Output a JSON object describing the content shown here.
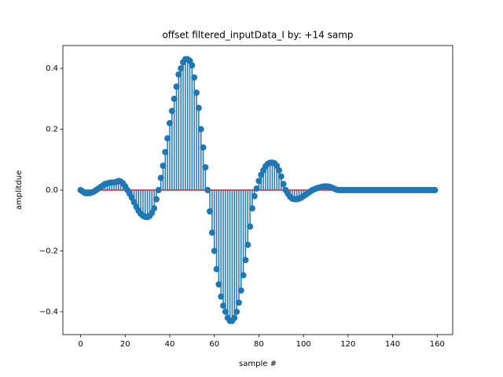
{
  "chart_data": {
    "type": "stem",
    "title": "offset filtered_inputData_I by: +14 samp",
    "xlabel": "sample #",
    "ylabel": "amplitdue",
    "x": [
      0,
      1,
      2,
      3,
      4,
      5,
      6,
      7,
      8,
      9,
      10,
      11,
      12,
      13,
      14,
      15,
      16,
      17,
      18,
      19,
      20,
      21,
      22,
      23,
      24,
      25,
      26,
      27,
      28,
      29,
      30,
      31,
      32,
      33,
      34,
      35,
      36,
      37,
      38,
      39,
      40,
      41,
      42,
      43,
      44,
      45,
      46,
      47,
      48,
      49,
      50,
      51,
      52,
      53,
      54,
      55,
      56,
      57,
      58,
      59,
      60,
      61,
      62,
      63,
      64,
      65,
      66,
      67,
      68,
      69,
      70,
      71,
      72,
      73,
      74,
      75,
      76,
      77,
      78,
      79,
      80,
      81,
      82,
      83,
      84,
      85,
      86,
      87,
      88,
      89,
      90,
      91,
      92,
      93,
      94,
      95,
      96,
      97,
      98,
      99,
      100,
      101,
      102,
      103,
      104,
      105,
      106,
      107,
      108,
      109,
      110,
      111,
      112,
      113,
      114,
      115,
      116,
      117,
      118,
      119,
      120,
      121,
      122,
      123,
      124,
      125,
      126,
      127,
      128,
      129,
      130,
      131,
      132,
      133,
      134,
      135,
      136,
      137,
      138,
      139,
      140,
      141,
      142,
      143,
      144,
      145,
      146,
      147,
      148,
      149,
      150,
      151,
      152,
      153,
      154,
      155,
      156,
      157,
      158,
      159
    ],
    "values": [
      0.0,
      -0.005,
      -0.01,
      -0.01,
      -0.01,
      -0.008,
      -0.005,
      0.0,
      0.005,
      0.01,
      0.015,
      0.02,
      0.022,
      0.024,
      0.025,
      0.025,
      0.027,
      0.03,
      0.028,
      0.022,
      0.012,
      0.0,
      -0.012,
      -0.025,
      -0.04,
      -0.055,
      -0.068,
      -0.078,
      -0.085,
      -0.088,
      -0.089,
      -0.085,
      -0.075,
      -0.06,
      -0.03,
      0.0,
      0.04,
      0.08,
      0.125,
      0.17,
      0.22,
      0.26,
      0.3,
      0.34,
      0.38,
      0.4,
      0.42,
      0.43,
      0.43,
      0.425,
      0.41,
      0.37,
      0.32,
      0.27,
      0.2,
      0.14,
      0.075,
      0.0,
      -0.07,
      -0.14,
      -0.2,
      -0.26,
      -0.31,
      -0.35,
      -0.38,
      -0.4,
      -0.42,
      -0.43,
      -0.43,
      -0.42,
      -0.4,
      -0.37,
      -0.33,
      -0.28,
      -0.23,
      -0.18,
      -0.12,
      -0.06,
      -0.02,
      0.005,
      0.03,
      0.05,
      0.065,
      0.078,
      0.086,
      0.09,
      0.09,
      0.088,
      0.08,
      0.065,
      0.045,
      0.02,
      0.0,
      -0.012,
      -0.022,
      -0.028,
      -0.03,
      -0.03,
      -0.028,
      -0.025,
      -0.02,
      -0.015,
      -0.01,
      -0.005,
      0.0,
      0.003,
      0.006,
      0.008,
      0.01,
      0.012,
      0.012,
      0.012,
      0.01,
      0.007,
      0.004,
      0.001,
      0,
      0,
      0,
      0,
      0,
      0,
      0,
      0,
      0,
      0,
      0,
      0,
      0,
      0,
      0,
      0,
      0,
      0,
      0,
      0,
      0,
      0,
      0,
      0,
      0,
      0,
      0,
      0,
      0,
      0,
      0,
      0,
      0,
      0,
      0,
      0,
      0,
      0,
      0,
      0,
      0,
      0,
      0,
      0
    ],
    "color": "#1f77b4",
    "baseline": 0,
    "baseline_color": "#d62728",
    "xlim": [
      -7.95,
      166.95
    ],
    "ylim": [
      -0.475,
      0.475
    ],
    "xticks": [
      0,
      20,
      40,
      60,
      80,
      100,
      120,
      140,
      160
    ],
    "yticks": [
      {
        "value": -0.4,
        "label": "−0.4"
      },
      {
        "value": -0.2,
        "label": "−0.2"
      },
      {
        "value": 0,
        "label": "0.0"
      },
      0.2,
      0.4
    ]
  }
}
